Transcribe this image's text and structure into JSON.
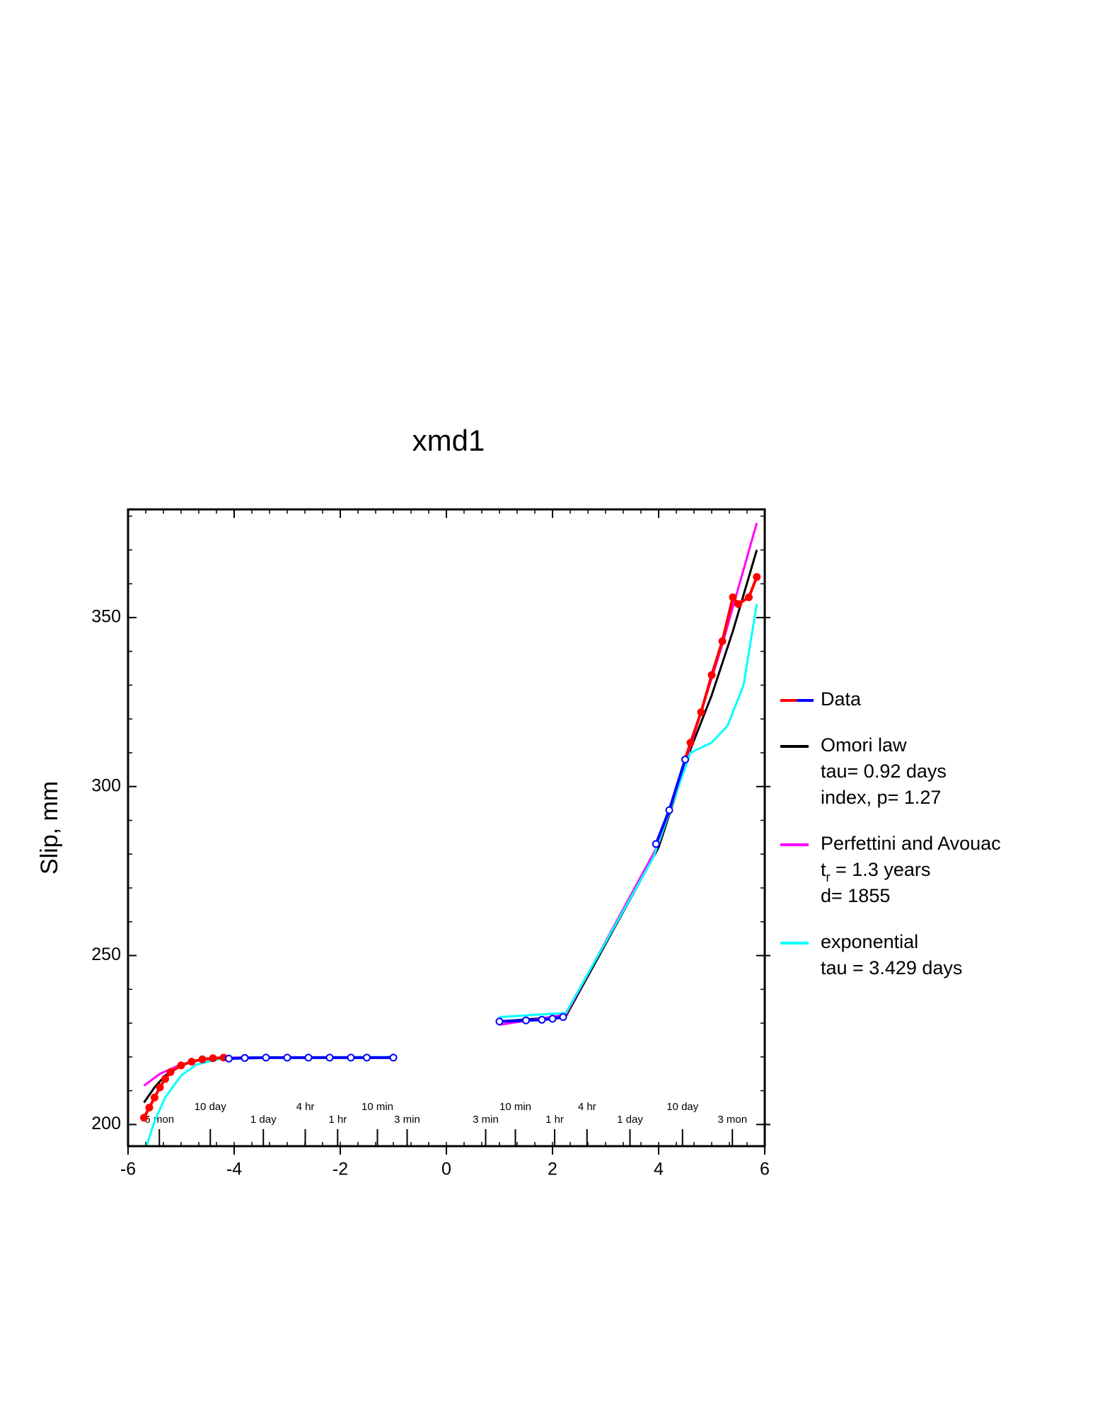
{
  "chart_data": {
    "type": "line",
    "title": "xmd1",
    "ylabel": "Slip, mm",
    "xlim": [
      -6,
      6
    ],
    "ylim": [
      193.6,
      382
    ],
    "xticks": [
      -6,
      -4,
      -2,
      0,
      2,
      4,
      6
    ],
    "yticks": [
      200,
      250,
      300,
      350
    ],
    "xminor_step": 0.3333333,
    "yminor_step": 10,
    "time_ticks": [
      {
        "value": -5.41,
        "label": "6 mon"
      },
      {
        "value": -4.45,
        "label": "10 day"
      },
      {
        "value": -3.45,
        "label": "1 day"
      },
      {
        "value": -2.66,
        "label": "4 hr"
      },
      {
        "value": -2.05,
        "label": "1 hr"
      },
      {
        "value": -1.3,
        "label": "10 min"
      },
      {
        "value": -0.74,
        "label": "3 min"
      },
      {
        "value": 0.74,
        "label": "3 min"
      },
      {
        "value": 1.3,
        "label": "10 min"
      },
      {
        "value": 2.04,
        "label": "1 hr"
      },
      {
        "value": 2.65,
        "label": "4 hr"
      },
      {
        "value": 3.46,
        "label": "1 day"
      },
      {
        "value": 4.45,
        "label": "10 day"
      },
      {
        "value": 5.39,
        "label": "3 mon"
      }
    ],
    "series": [
      {
        "name": "Data",
        "kind": "points",
        "x": [
          -5.7,
          -5.6,
          -5.5,
          -5.4,
          -5.3,
          -5.2,
          -5.0,
          -4.8,
          -4.6,
          -4.4,
          -4.2,
          -4.1,
          -3.8,
          -3.4,
          -3.0,
          -2.6,
          -2.2,
          -1.8,
          -1.5,
          -1.0,
          null,
          1.0,
          1.5,
          1.8,
          2.0,
          2.2,
          null,
          3.95,
          4.2,
          4.5,
          4.6,
          4.8,
          5.0,
          5.2,
          5.4,
          5.5,
          5.7,
          5.85
        ],
        "values": [
          202,
          205,
          208,
          211,
          213.5,
          215.5,
          217.5,
          218.6,
          219.3,
          219.6,
          219.8,
          219.5,
          219.7,
          219.8,
          219.8,
          219.8,
          219.8,
          219.8,
          219.8,
          219.8,
          null,
          230.5,
          230.8,
          231,
          231.3,
          231.8,
          null,
          283,
          293,
          308,
          313,
          322,
          333,
          343,
          356,
          354,
          356,
          362
        ],
        "colors": [
          "#ff0000",
          "#ff0000",
          "#ff0000",
          "#ff0000",
          "#ff0000",
          "#ff0000",
          "#ff0000",
          "#ff0000",
          "#ff0000",
          "#ff0000",
          "#ff0000",
          "#0000ff",
          "#0000ff",
          "#0000ff",
          "#0000ff",
          "#0000ff",
          "#0000ff",
          "#0000ff",
          "#0000ff",
          "#0000ff",
          null,
          "#0000ff",
          "#0000ff",
          "#0000ff",
          "#0000ff",
          "#0000ff",
          null,
          "#0000ff",
          "#0000ff",
          "#0000ff",
          "#ff0000",
          "#ff0000",
          "#ff0000",
          "#ff0000",
          "#ff0000",
          "#ff0000",
          "#ff0000",
          "#ff0000"
        ],
        "details": []
      },
      {
        "name": "Omori law",
        "color": "#000000",
        "kind": "line",
        "x": [
          -5.7,
          -5.5,
          -5.3,
          -5.0,
          -4.7,
          -4.4,
          -4.0,
          -1.0,
          null,
          1.0,
          2.25,
          4.0,
          4.6,
          5.0,
          5.4,
          5.85
        ],
        "values": [
          206.5,
          211,
          214.5,
          217.5,
          219,
          219.6,
          219.8,
          219.9,
          null,
          230.5,
          232,
          282,
          311,
          327,
          346,
          370
        ],
        "details": [
          [
            {
              "text": "tau= 0.92 days"
            }
          ],
          [
            {
              "text": "index, p= 1.27"
            }
          ]
        ]
      },
      {
        "name": "Perfettini and Avouac",
        "color": "#ff00ff",
        "kind": "line",
        "x": [
          -5.7,
          -5.4,
          -5.0,
          -4.6,
          -4.0,
          -1.0,
          null,
          1.0,
          2.25,
          4.0,
          4.6,
          5.2,
          5.85
        ],
        "values": [
          211.5,
          215,
          217.8,
          219.2,
          219.8,
          220,
          null,
          229.5,
          232.5,
          283,
          312,
          342,
          378
        ],
        "details": [
          [
            {
              "text": "t"
            },
            {
              "text": "r",
              "sub": true
            },
            {
              "text": " = 1.3 years"
            }
          ],
          [
            {
              "text": "d= 1855"
            }
          ]
        ]
      },
      {
        "name": "exponential",
        "color": "#00ffff",
        "kind": "line",
        "x": [
          -5.65,
          -5.5,
          -5.3,
          -5.0,
          -4.7,
          -4.3,
          -4.0,
          -1.0,
          null,
          1.0,
          2.25,
          3.9,
          4.6,
          5.0,
          5.3,
          5.6,
          5.85
        ],
        "values": [
          193.7,
          201,
          208,
          214.5,
          217.8,
          219.3,
          219.7,
          220,
          null,
          231.8,
          233,
          279,
          310,
          313,
          318,
          330,
          354
        ],
        "details": [
          [
            {
              "text": "tau = 3.429 days"
            }
          ]
        ]
      }
    ]
  }
}
